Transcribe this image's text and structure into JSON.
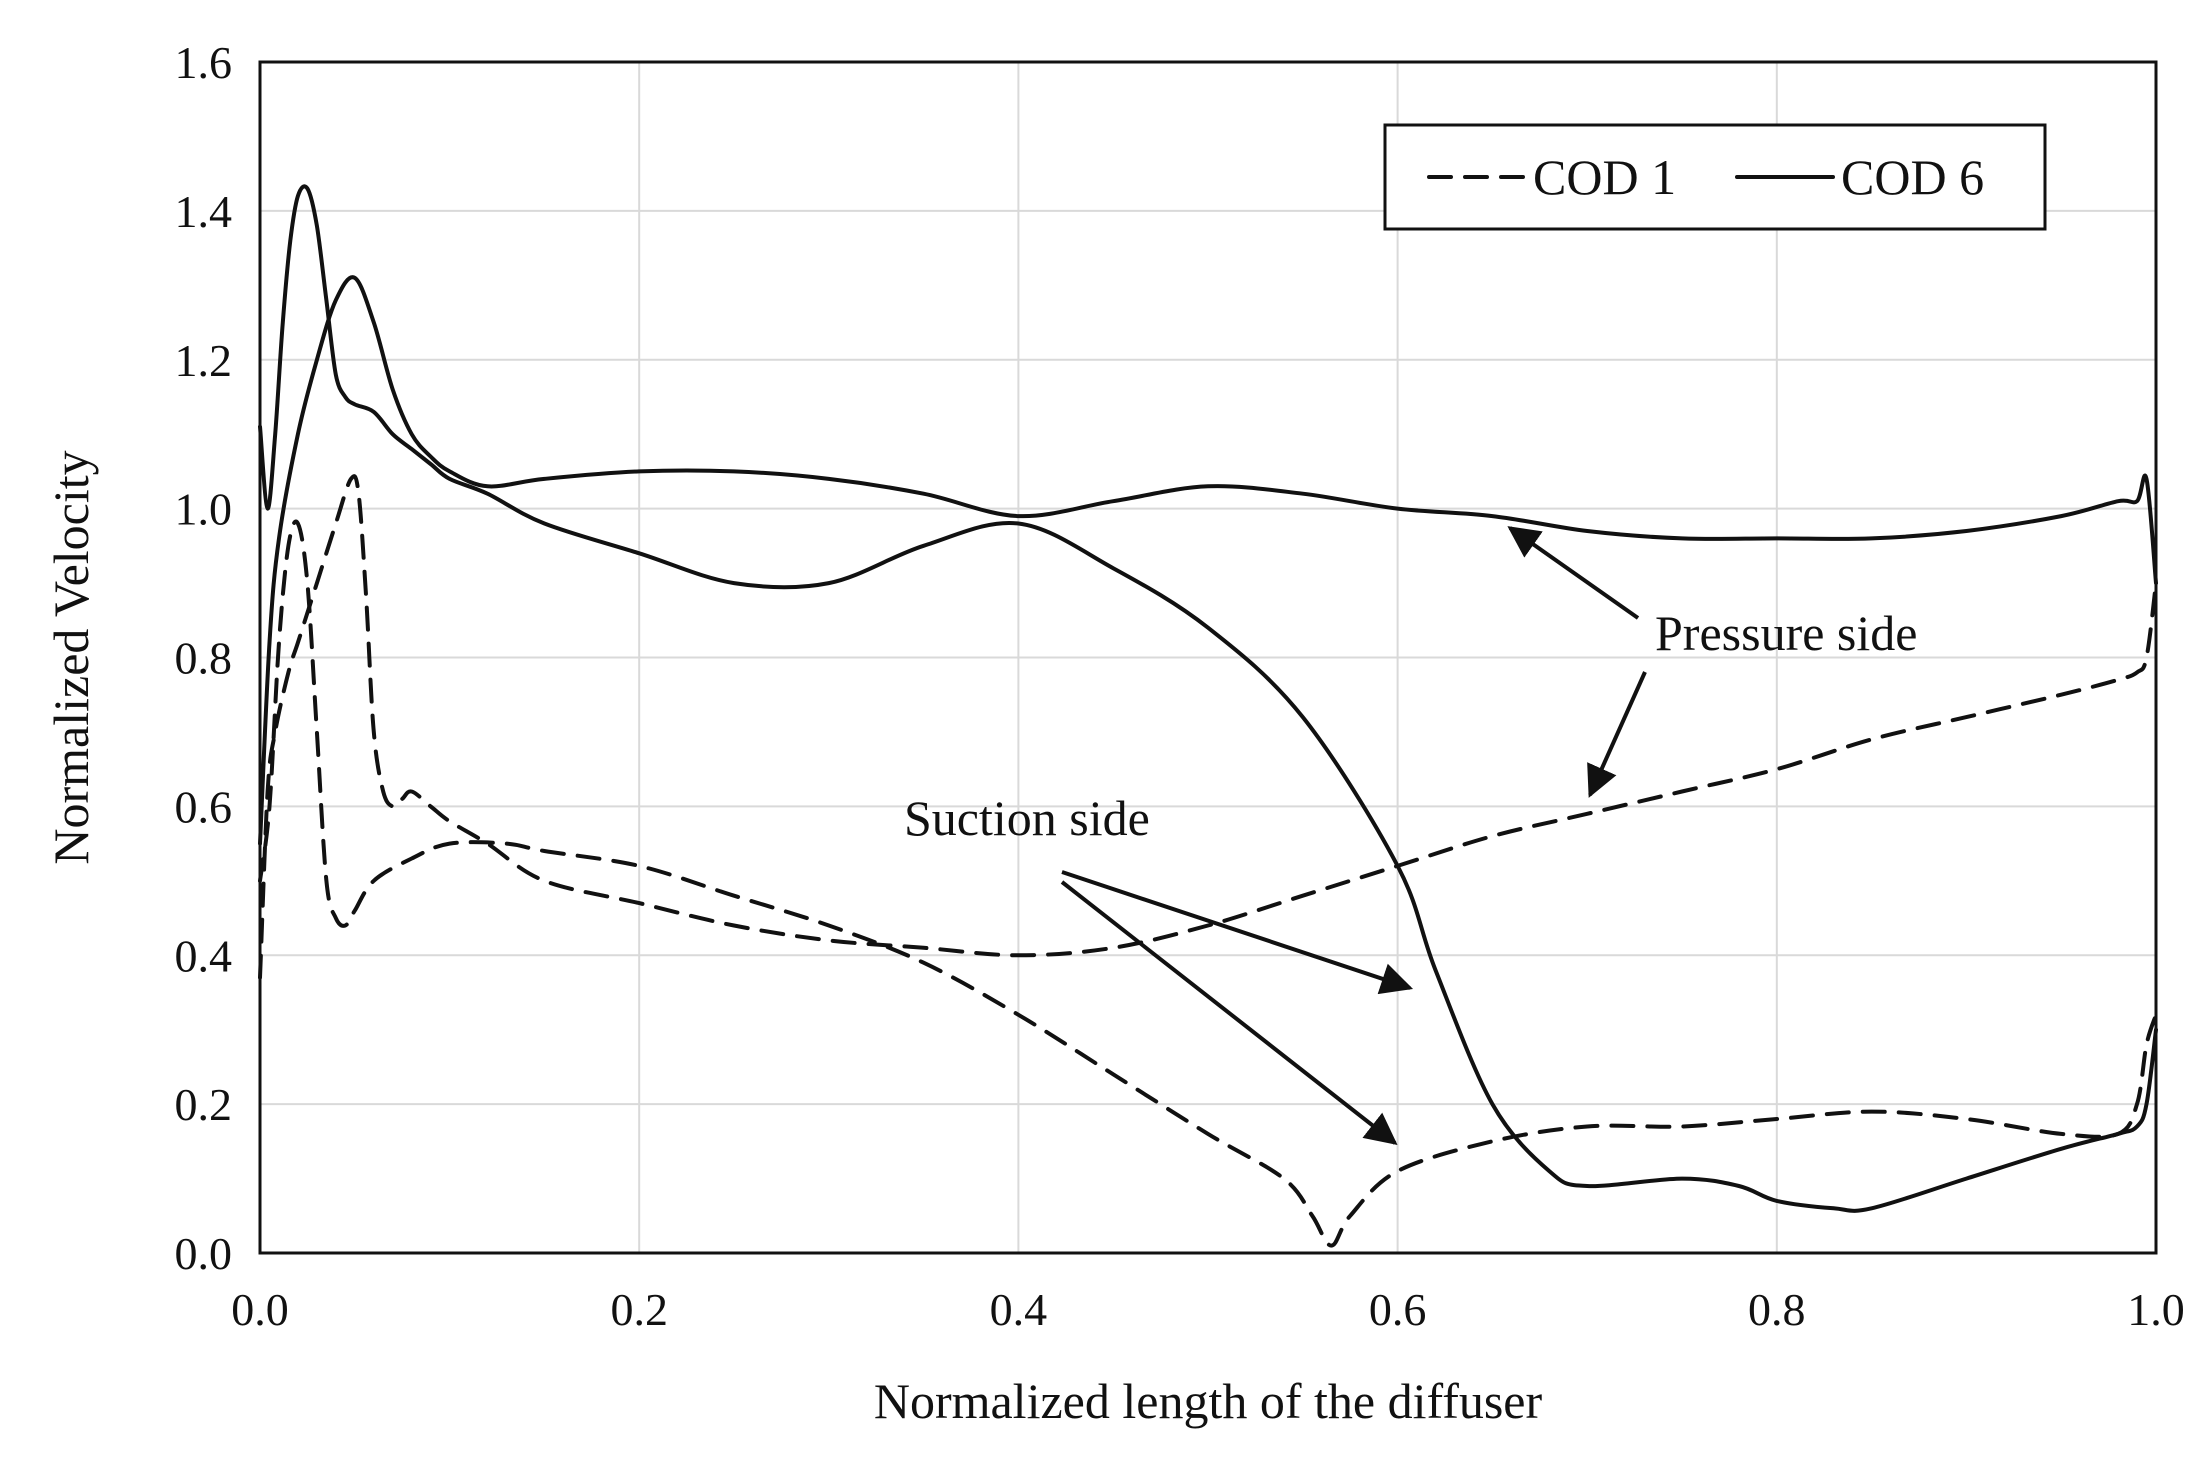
{
  "chart_data": {
    "type": "line",
    "xlabel": "Normalized length of the diffuser",
    "ylabel": "Normalized Velocity",
    "xlim": [
      0.0,
      1.0
    ],
    "ylim": [
      0.0,
      1.6
    ],
    "x_ticks": [
      "0.0",
      "0.2",
      "0.4",
      "0.6",
      "0.8",
      "1.0"
    ],
    "y_ticks": [
      "0.0",
      "0.2",
      "0.4",
      "0.6",
      "0.8",
      "1.0",
      "1.2",
      "1.4",
      "1.6"
    ],
    "grid": true,
    "legend": {
      "position": "top-right",
      "entries": [
        "COD 1",
        "COD 6"
      ]
    },
    "annotations": {
      "pressure_side": "Pressure side",
      "suction_side": "Suction side"
    },
    "series": [
      {
        "name": "COD 1",
        "side": "pressure",
        "style": "dashed",
        "x": [
          0.0,
          0.004,
          0.008,
          0.015,
          0.02,
          0.025,
          0.03,
          0.04,
          0.048,
          0.052,
          0.056,
          0.06,
          0.065,
          0.07,
          0.075,
          0.08,
          0.09,
          0.1,
          0.12,
          0.15,
          0.2,
          0.25,
          0.3,
          0.35,
          0.4,
          0.45,
          0.5,
          0.55,
          0.6,
          0.65,
          0.7,
          0.75,
          0.8,
          0.85,
          0.9,
          0.95,
          0.98,
          0.99,
          0.995,
          1.0
        ],
        "y": [
          0.37,
          0.62,
          0.7,
          0.78,
          0.82,
          0.86,
          0.9,
          0.98,
          1.04,
          1.02,
          0.88,
          0.7,
          0.62,
          0.6,
          0.61,
          0.62,
          0.6,
          0.58,
          0.55,
          0.5,
          0.47,
          0.44,
          0.42,
          0.41,
          0.4,
          0.41,
          0.44,
          0.48,
          0.52,
          0.56,
          0.59,
          0.62,
          0.65,
          0.69,
          0.72,
          0.75,
          0.77,
          0.78,
          0.8,
          0.9
        ]
      },
      {
        "name": "COD 1",
        "side": "suction",
        "style": "dashed",
        "x": [
          0.0,
          0.005,
          0.01,
          0.015,
          0.02,
          0.025,
          0.03,
          0.035,
          0.04,
          0.045,
          0.05,
          0.06,
          0.08,
          0.1,
          0.13,
          0.15,
          0.2,
          0.25,
          0.3,
          0.35,
          0.4,
          0.45,
          0.5,
          0.54,
          0.555,
          0.565,
          0.575,
          0.6,
          0.65,
          0.7,
          0.75,
          0.8,
          0.85,
          0.9,
          0.95,
          0.98,
          0.99,
          0.995,
          1.0
        ],
        "y": [
          0.5,
          0.6,
          0.82,
          0.95,
          0.98,
          0.9,
          0.7,
          0.5,
          0.45,
          0.44,
          0.46,
          0.5,
          0.53,
          0.55,
          0.55,
          0.54,
          0.52,
          0.48,
          0.44,
          0.39,
          0.32,
          0.24,
          0.16,
          0.1,
          0.05,
          0.01,
          0.05,
          0.11,
          0.15,
          0.17,
          0.17,
          0.18,
          0.19,
          0.18,
          0.16,
          0.16,
          0.2,
          0.28,
          0.32
        ]
      },
      {
        "name": "COD 6",
        "side": "pressure",
        "style": "solid",
        "x": [
          0.0,
          0.005,
          0.01,
          0.02,
          0.03,
          0.04,
          0.05,
          0.06,
          0.07,
          0.08,
          0.09,
          0.1,
          0.12,
          0.15,
          0.2,
          0.25,
          0.3,
          0.35,
          0.4,
          0.45,
          0.5,
          0.55,
          0.6,
          0.65,
          0.7,
          0.75,
          0.8,
          0.85,
          0.9,
          0.95,
          0.98,
          0.99,
          0.995,
          1.0
        ],
        "y": [
          0.55,
          0.82,
          0.96,
          1.1,
          1.2,
          1.28,
          1.31,
          1.25,
          1.16,
          1.1,
          1.07,
          1.05,
          1.03,
          1.04,
          1.05,
          1.05,
          1.04,
          1.02,
          0.99,
          1.01,
          1.03,
          1.02,
          1.0,
          0.99,
          0.97,
          0.96,
          0.96,
          0.96,
          0.97,
          0.99,
          1.01,
          1.01,
          1.04,
          0.9
        ]
      },
      {
        "name": "COD 6",
        "side": "suction",
        "style": "solid",
        "x": [
          0.0,
          0.004,
          0.008,
          0.012,
          0.016,
          0.02,
          0.025,
          0.03,
          0.035,
          0.04,
          0.045,
          0.05,
          0.06,
          0.07,
          0.08,
          0.09,
          0.1,
          0.12,
          0.15,
          0.2,
          0.25,
          0.3,
          0.35,
          0.4,
          0.45,
          0.5,
          0.55,
          0.6,
          0.62,
          0.65,
          0.68,
          0.7,
          0.75,
          0.78,
          0.8,
          0.83,
          0.85,
          0.9,
          0.95,
          0.98,
          0.99,
          0.995,
          1.0
        ],
        "y": [
          1.11,
          1.0,
          1.1,
          1.25,
          1.36,
          1.42,
          1.43,
          1.38,
          1.28,
          1.18,
          1.15,
          1.14,
          1.13,
          1.1,
          1.08,
          1.06,
          1.04,
          1.02,
          0.98,
          0.94,
          0.9,
          0.9,
          0.95,
          0.98,
          0.92,
          0.84,
          0.72,
          0.52,
          0.38,
          0.2,
          0.11,
          0.09,
          0.1,
          0.09,
          0.07,
          0.06,
          0.06,
          0.1,
          0.14,
          0.16,
          0.17,
          0.2,
          0.3
        ]
      }
    ]
  }
}
